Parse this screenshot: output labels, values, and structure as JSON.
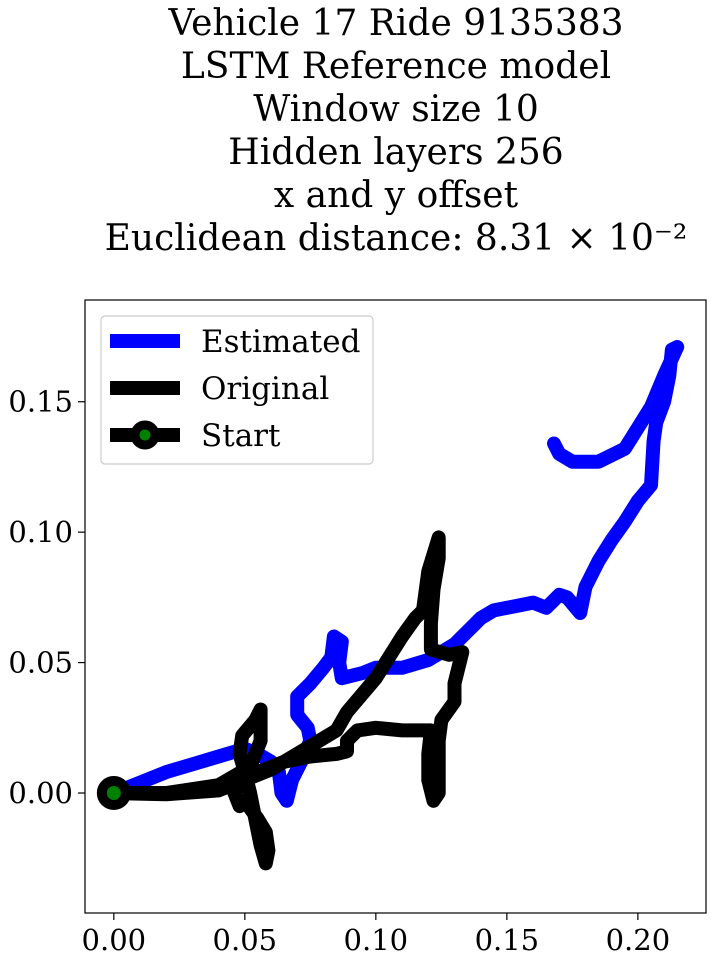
{
  "chart_data": {
    "type": "line",
    "title_lines": [
      "Vehicle 17 Ride 9135383",
      "LSTM Reference model",
      "Window size 10",
      "Hidden layers 256",
      "x and y offset",
      "Euclidean distance: 8.31 × 10⁻²"
    ],
    "xlabel": "",
    "ylabel": "",
    "xlim": [
      -0.011,
      0.226
    ],
    "ylim": [
      -0.046,
      0.189
    ],
    "xticks": [
      0.0,
      0.05,
      0.1,
      0.15,
      0.2
    ],
    "xtick_labels": [
      "0.00",
      "0.05",
      "0.10",
      "0.15",
      "0.20"
    ],
    "yticks": [
      0.0,
      0.05,
      0.1,
      0.15
    ],
    "ytick_labels": [
      "0.00",
      "0.05",
      "0.10",
      "0.15"
    ],
    "grid": false,
    "legend_position": "top-left",
    "series": [
      {
        "name": "Estimated",
        "color": "#0000ff",
        "points": [
          [
            0.0,
            0.0
          ],
          [
            0.01,
            0.004
          ],
          [
            0.02,
            0.008
          ],
          [
            0.03,
            0.011
          ],
          [
            0.04,
            0.014
          ],
          [
            0.05,
            0.017
          ],
          [
            0.055,
            0.015
          ],
          [
            0.06,
            0.012
          ],
          [
            0.063,
            0.008
          ],
          [
            0.064,
            0.0
          ],
          [
            0.066,
            -0.003
          ],
          [
            0.068,
            0.005
          ],
          [
            0.072,
            0.013
          ],
          [
            0.075,
            0.02
          ],
          [
            0.074,
            0.025
          ],
          [
            0.07,
            0.03
          ],
          [
            0.07,
            0.037
          ],
          [
            0.075,
            0.042
          ],
          [
            0.08,
            0.048
          ],
          [
            0.083,
            0.052
          ],
          [
            0.084,
            0.06
          ],
          [
            0.087,
            0.058
          ],
          [
            0.086,
            0.05
          ],
          [
            0.087,
            0.044
          ],
          [
            0.095,
            0.046
          ],
          [
            0.1,
            0.048
          ],
          [
            0.11,
            0.048
          ],
          [
            0.12,
            0.051
          ],
          [
            0.13,
            0.057
          ],
          [
            0.137,
            0.064
          ],
          [
            0.14,
            0.067
          ],
          [
            0.145,
            0.07
          ],
          [
            0.155,
            0.072
          ],
          [
            0.16,
            0.073
          ],
          [
            0.165,
            0.071
          ],
          [
            0.17,
            0.076
          ],
          [
            0.173,
            0.075
          ],
          [
            0.178,
            0.069
          ],
          [
            0.18,
            0.079
          ],
          [
            0.185,
            0.089
          ],
          [
            0.19,
            0.097
          ],
          [
            0.195,
            0.104
          ],
          [
            0.2,
            0.112
          ],
          [
            0.205,
            0.118
          ],
          [
            0.206,
            0.135
          ],
          [
            0.207,
            0.142
          ],
          [
            0.21,
            0.15
          ],
          [
            0.212,
            0.16
          ],
          [
            0.213,
            0.17
          ],
          [
            0.215,
            0.171
          ],
          [
            0.21,
            0.16
          ],
          [
            0.205,
            0.148
          ],
          [
            0.2,
            0.14
          ],
          [
            0.195,
            0.132
          ],
          [
            0.185,
            0.127
          ],
          [
            0.175,
            0.127
          ],
          [
            0.17,
            0.13
          ],
          [
            0.168,
            0.134
          ]
        ]
      },
      {
        "name": "Original",
        "color": "#000000",
        "points": [
          [
            0.0,
            0.0
          ],
          [
            0.02,
            -0.0005
          ],
          [
            0.04,
            0.001
          ],
          [
            0.05,
            0.005
          ],
          [
            0.06,
            0.009
          ],
          [
            0.07,
            0.015
          ],
          [
            0.08,
            0.021
          ],
          [
            0.085,
            0.024
          ],
          [
            0.089,
            0.031
          ],
          [
            0.1,
            0.044
          ],
          [
            0.11,
            0.06
          ],
          [
            0.115,
            0.067
          ],
          [
            0.118,
            0.07
          ],
          [
            0.12,
            0.085
          ],
          [
            0.124,
            0.098
          ],
          [
            0.124,
            0.09
          ],
          [
            0.122,
            0.078
          ],
          [
            0.121,
            0.065
          ],
          [
            0.121,
            0.055
          ],
          [
            0.128,
            0.053
          ],
          [
            0.133,
            0.054
          ],
          [
            0.13,
            0.042
          ],
          [
            0.13,
            0.035
          ],
          [
            0.125,
            0.028
          ],
          [
            0.124,
            0.02
          ],
          [
            0.124,
            0.01
          ],
          [
            0.124,
            0.0
          ],
          [
            0.122,
            -0.003
          ],
          [
            0.12,
            0.005
          ],
          [
            0.12,
            0.015
          ],
          [
            0.121,
            0.024
          ],
          [
            0.11,
            0.024
          ],
          [
            0.1,
            0.025
          ],
          [
            0.093,
            0.024
          ],
          [
            0.089,
            0.02
          ],
          [
            0.089,
            0.016
          ],
          [
            0.085,
            0.015
          ],
          [
            0.075,
            0.014
          ],
          [
            0.065,
            0.012
          ],
          [
            0.055,
            0.008
          ],
          [
            0.05,
            0.005
          ],
          [
            0.046,
            0.0
          ],
          [
            0.048,
            -0.005
          ],
          [
            0.05,
            -0.003
          ],
          [
            0.055,
            -0.01
          ],
          [
            0.058,
            -0.015
          ],
          [
            0.059,
            -0.022
          ],
          [
            0.058,
            -0.027
          ],
          [
            0.056,
            -0.02
          ],
          [
            0.054,
            -0.01
          ],
          [
            0.052,
            0.0
          ],
          [
            0.05,
            0.008
          ],
          [
            0.048,
            0.015
          ],
          [
            0.049,
            0.022
          ],
          [
            0.054,
            0.028
          ],
          [
            0.056,
            0.032
          ],
          [
            0.056,
            0.02
          ],
          [
            0.052,
            0.01
          ],
          [
            0.04,
            0.003
          ],
          [
            0.02,
            0.0
          ],
          [
            0.0,
            0.0
          ]
        ]
      }
    ],
    "start_marker": {
      "label": "Start",
      "x": 0.0,
      "y": 0.0,
      "fill_color": "#008000",
      "edge_color": "#000000"
    }
  }
}
